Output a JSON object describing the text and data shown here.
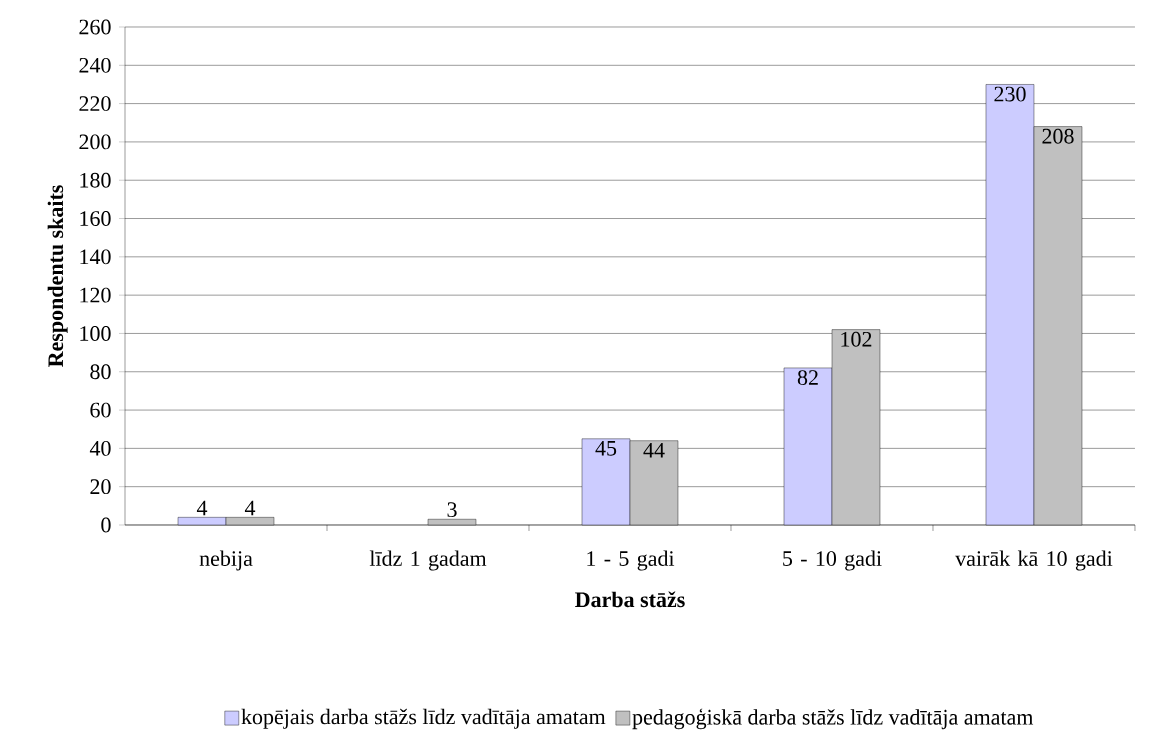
{
  "chart_data": {
    "type": "bar",
    "xlabel": "Darba stāžs",
    "ylabel": "Respondentu skaits",
    "categories": [
      "nebija",
      "līdz 1 gadam",
      "1 - 5 gadi",
      "5 - 10 gadi",
      "vairāk kā 10 gadi"
    ],
    "series": [
      {
        "name": "kopējais darba stāžs līdz vadītāja amatam",
        "color": "#ccccff",
        "values": [
          4,
          null,
          45,
          82,
          230
        ],
        "value_labels": [
          "4",
          null,
          "45",
          "82",
          "230"
        ]
      },
      {
        "name": "pedagoģiskā darba stāžs līdz vadītāja amatam",
        "color": "#c0c0c0",
        "values": [
          4,
          3,
          44,
          102,
          208
        ],
        "value_labels": [
          "4",
          "3",
          "44",
          "102",
          "208"
        ]
      }
    ],
    "ylim": [
      0,
      260
    ],
    "yticks": [
      0,
      20,
      40,
      60,
      80,
      100,
      120,
      140,
      160,
      180,
      200,
      220,
      240,
      260
    ],
    "grid": "y",
    "legend": "bottom"
  }
}
